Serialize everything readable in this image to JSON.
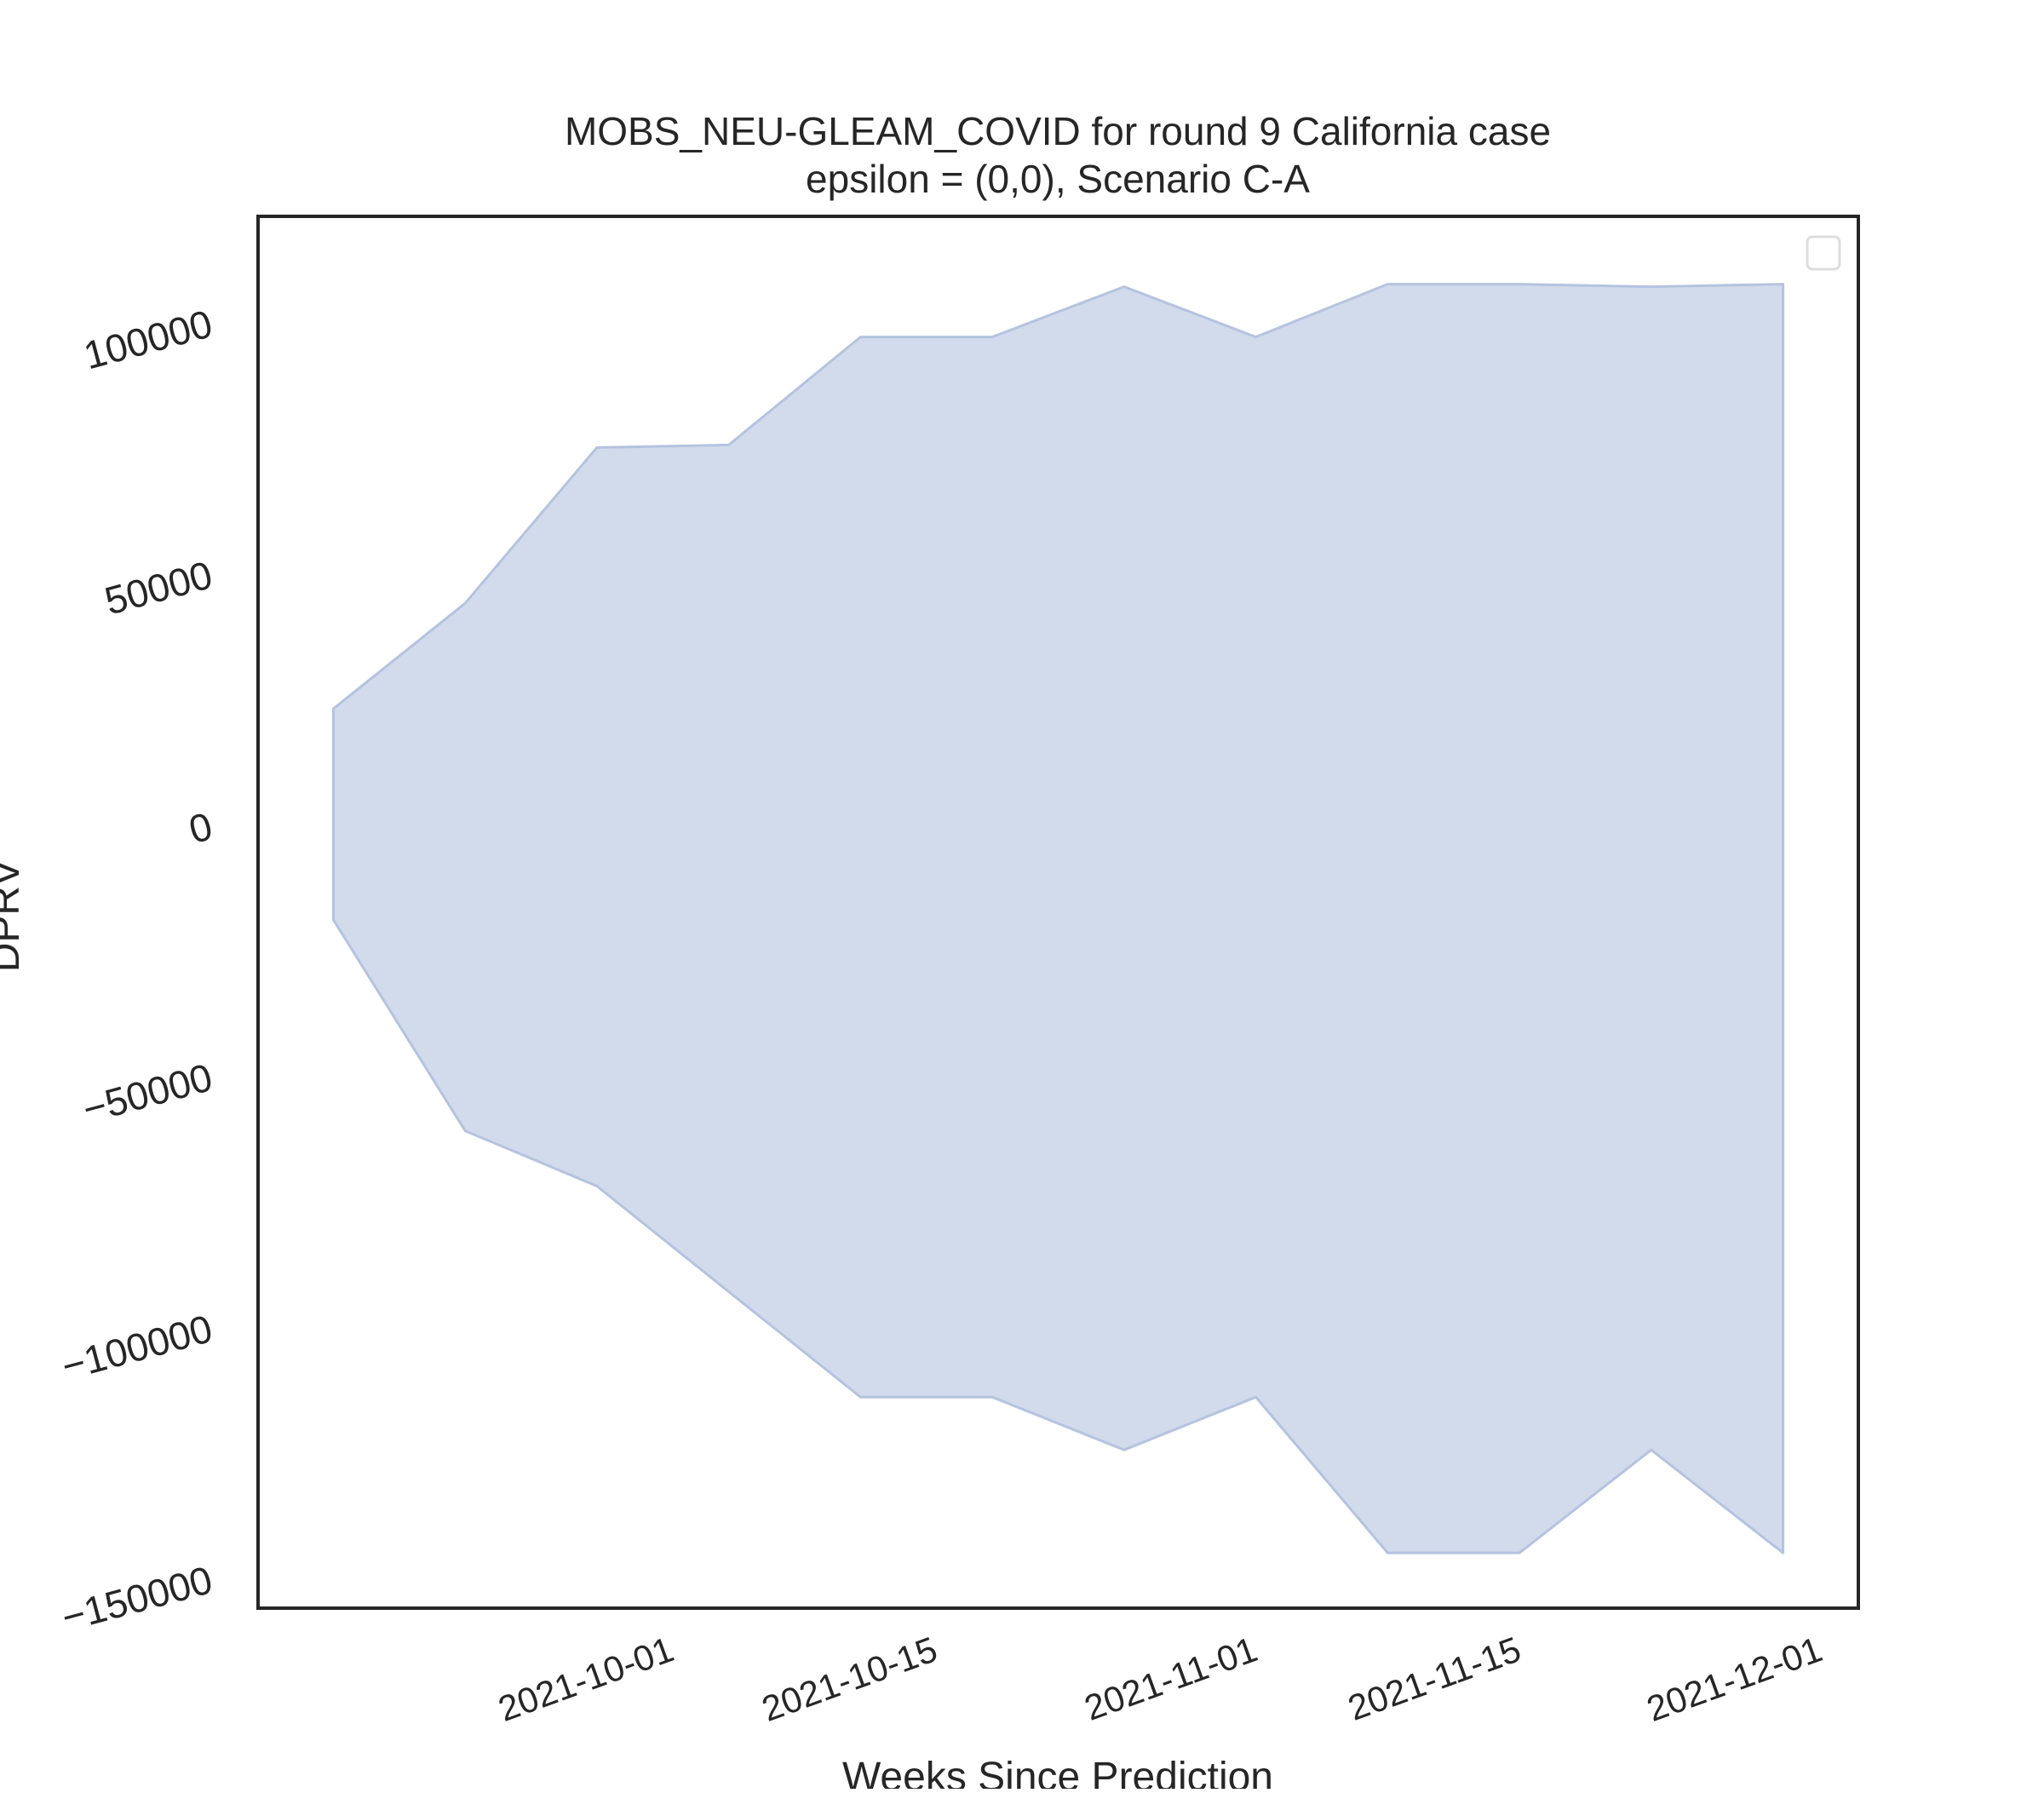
{
  "chart_data": {
    "type": "area",
    "title": "MOBS_NEU-GLEAM_COVID for round 9 California case",
    "subtitle": "epsilon = (0,0), Scenario C-A",
    "xlabel": "Weeks Since Prediction",
    "ylabel": "DPRV",
    "x": [
      "2021-09-18",
      "2021-09-25",
      "2021-10-02",
      "2021-10-09",
      "2021-10-16",
      "2021-10-23",
      "2021-10-30",
      "2021-11-06",
      "2021-11-13",
      "2021-11-20",
      "2021-11-27",
      "2021-12-04"
    ],
    "x_ticks": [
      "2021-10-01",
      "2021-10-15",
      "2021-11-01",
      "2021-11-15",
      "2021-12-01"
    ],
    "y_ticks": [
      100000,
      50000,
      0,
      -50000,
      -100000,
      -150000
    ],
    "y_tick_labels": [
      "100000",
      "50000",
      "0",
      "−50000",
      "−100000",
      "−150000"
    ],
    "xlim": [
      "2021-09-14",
      "2021-12-08"
    ],
    "ylim": [
      -157000,
      120000
    ],
    "series": [
      {
        "upper": [
          22000,
          43000,
          74000,
          74500,
          96000,
          96000,
          106000,
          96000,
          106500,
          106500,
          106000,
          106500
        ],
        "lower": [
          -20000,
          -62000,
          -73000,
          -94000,
          -115000,
          -115000,
          -125500,
          -115000,
          -146000,
          -146000,
          -125500,
          -146000
        ]
      }
    ],
    "fill_color": "#d2dbeb",
    "edge_color": "#b4c3df",
    "grid": false,
    "legend": "top-right (empty)"
  }
}
